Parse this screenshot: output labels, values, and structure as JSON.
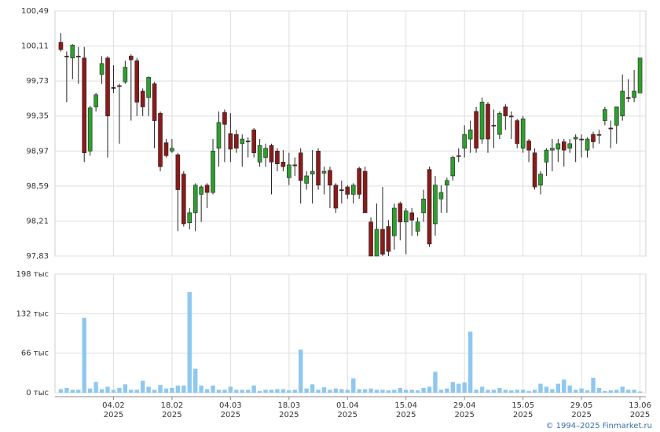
{
  "chart_data": [
    {
      "type": "candlestick",
      "ylim": [
        97.83,
        100.49
      ],
      "yticks": [
        {
          "value": 97.83,
          "label": "97,83"
        },
        {
          "value": 98.21,
          "label": "98,21"
        },
        {
          "value": 98.59,
          "label": "98,59"
        },
        {
          "value": 98.97,
          "label": "98,97"
        },
        {
          "value": 99.35,
          "label": "99,35"
        },
        {
          "value": 99.73,
          "label": "99,73"
        },
        {
          "value": 100.11,
          "label": "100,11"
        },
        {
          "value": 100.49,
          "label": "100,49"
        }
      ],
      "xlim": [
        -1,
        100
      ],
      "up_color": "#2ca02c",
      "down_color": "#8b1a1a",
      "grid": true,
      "ohlc": [
        [
          100.15,
          100.25,
          100.05,
          100.07
        ],
        [
          100.0,
          100.05,
          99.5,
          99.99
        ],
        [
          99.98,
          100.13,
          99.75,
          100.12
        ],
        [
          100.0,
          100.1,
          99.7,
          99.99
        ],
        [
          99.98,
          100.1,
          98.85,
          98.95
        ],
        [
          98.97,
          99.46,
          98.92,
          99.44
        ],
        [
          99.45,
          99.6,
          99.4,
          99.58
        ],
        [
          99.8,
          100.0,
          99.7,
          99.92
        ],
        [
          99.98,
          100.0,
          98.9,
          99.35
        ],
        [
          99.66,
          99.9,
          99.6,
          99.65
        ],
        [
          99.68,
          99.7,
          99.05,
          99.67
        ],
        [
          99.72,
          99.95,
          99.7,
          99.88
        ],
        [
          100.0,
          100.02,
          99.3,
          99.96
        ],
        [
          99.95,
          99.98,
          99.35,
          99.5
        ],
        [
          99.62,
          99.65,
          99.35,
          99.45
        ],
        [
          99.55,
          99.78,
          99.35,
          99.77
        ],
        [
          99.7,
          99.72,
          99.0,
          99.3
        ],
        [
          99.38,
          99.4,
          98.75,
          98.8
        ],
        [
          99.06,
          99.1,
          98.9,
          98.92
        ],
        [
          98.97,
          99.1,
          98.95,
          99.0
        ],
        [
          98.93,
          98.95,
          98.1,
          98.55
        ],
        [
          98.72,
          98.75,
          98.15,
          98.18
        ],
        [
          98.19,
          98.35,
          98.12,
          98.3
        ],
        [
          98.3,
          98.62,
          98.1,
          98.6
        ],
        [
          98.5,
          98.6,
          98.2,
          98.58
        ],
        [
          98.6,
          98.62,
          98.35,
          98.52
        ],
        [
          98.52,
          99.1,
          98.5,
          98.97
        ],
        [
          99.0,
          99.4,
          98.8,
          99.28
        ],
        [
          99.39,
          99.42,
          98.85,
          99.26
        ],
        [
          99.16,
          99.38,
          98.85,
          98.99
        ],
        [
          99.15,
          99.2,
          98.95,
          99.0
        ],
        [
          99.05,
          99.15,
          98.8,
          99.1
        ],
        [
          99.08,
          99.12,
          98.9,
          99.07
        ],
        [
          99.2,
          99.22,
          98.9,
          98.95
        ],
        [
          98.85,
          99.1,
          98.8,
          99.03
        ],
        [
          98.9,
          99.05,
          98.8,
          99.0
        ],
        [
          99.03,
          99.05,
          98.5,
          98.85
        ],
        [
          98.97,
          99.0,
          98.75,
          98.83
        ],
        [
          98.85,
          98.98,
          98.75,
          98.8
        ],
        [
          98.68,
          98.95,
          98.6,
          98.82
        ],
        [
          98.82,
          98.9,
          98.7,
          98.81
        ],
        [
          98.95,
          99.0,
          98.4,
          98.65
        ],
        [
          98.62,
          98.75,
          98.55,
          98.7
        ],
        [
          98.72,
          98.98,
          98.4,
          98.75
        ],
        [
          98.97,
          99.0,
          98.55,
          98.6
        ],
        [
          98.73,
          98.8,
          98.5,
          98.75
        ],
        [
          98.76,
          98.8,
          98.35,
          98.6
        ],
        [
          98.6,
          98.62,
          98.3,
          98.35
        ],
        [
          98.55,
          98.65,
          98.4,
          98.54
        ],
        [
          98.58,
          98.6,
          98.45,
          98.5
        ],
        [
          98.5,
          98.62,
          98.4,
          98.6
        ],
        [
          98.78,
          98.8,
          98.45,
          98.5
        ],
        [
          98.75,
          98.8,
          98.3,
          98.3
        ],
        [
          98.2,
          98.25,
          97.83,
          97.83
        ],
        [
          97.83,
          98.4,
          97.83,
          98.12
        ],
        [
          98.12,
          98.58,
          97.83,
          97.85
        ],
        [
          98.15,
          98.22,
          97.83,
          97.88
        ],
        [
          98.05,
          98.4,
          97.9,
          98.35
        ],
        [
          98.4,
          98.42,
          98.0,
          98.2
        ],
        [
          98.2,
          98.35,
          97.85,
          98.32
        ],
        [
          98.3,
          98.35,
          98.05,
          98.22
        ],
        [
          98.1,
          98.25,
          98.05,
          98.2
        ],
        [
          98.3,
          98.55,
          98.2,
          98.45
        ],
        [
          98.77,
          98.8,
          97.93,
          97.96
        ],
        [
          98.18,
          98.7,
          98.05,
          98.6
        ],
        [
          98.45,
          98.6,
          98.3,
          98.52
        ],
        [
          98.6,
          98.68,
          98.3,
          98.65
        ],
        [
          98.7,
          98.92,
          98.65,
          98.9
        ],
        [
          98.92,
          99.0,
          98.85,
          98.91
        ],
        [
          99.0,
          99.25,
          98.9,
          99.15
        ],
        [
          99.1,
          99.3,
          98.95,
          99.2
        ],
        [
          99.4,
          99.45,
          98.95,
          99.0
        ],
        [
          99.1,
          99.55,
          99.05,
          99.5
        ],
        [
          99.48,
          99.5,
          98.95,
          99.1
        ],
        [
          99.25,
          99.42,
          99.0,
          99.24
        ],
        [
          99.15,
          99.4,
          99.1,
          99.38
        ],
        [
          99.45,
          99.48,
          99.2,
          99.35
        ],
        [
          99.35,
          99.4,
          99.1,
          99.34
        ],
        [
          99.3,
          99.32,
          99.0,
          99.05
        ],
        [
          99.0,
          99.35,
          98.95,
          99.32
        ],
        [
          99.08,
          99.1,
          98.85,
          98.98
        ],
        [
          98.95,
          99.0,
          98.55,
          98.58
        ],
        [
          98.6,
          98.75,
          98.5,
          98.72
        ],
        [
          98.85,
          99.0,
          98.7,
          98.98
        ],
        [
          98.98,
          99.1,
          98.75,
          99.0
        ],
        [
          98.99,
          99.1,
          98.85,
          99.05
        ],
        [
          99.07,
          99.1,
          98.8,
          98.98
        ],
        [
          99.0,
          99.1,
          98.95,
          99.05
        ],
        [
          99.1,
          99.15,
          98.85,
          99.12
        ],
        [
          99.1,
          99.15,
          98.9,
          99.09
        ],
        [
          98.98,
          99.12,
          98.9,
          99.1
        ],
        [
          99.15,
          99.18,
          99.0,
          99.07
        ],
        [
          99.15,
          99.2,
          99.05,
          99.14
        ],
        [
          99.3,
          99.45,
          99.25,
          99.42
        ],
        [
          99.22,
          99.3,
          99.0,
          99.21
        ],
        [
          99.25,
          99.45,
          99.05,
          99.45
        ],
        [
          99.35,
          99.8,
          99.3,
          99.62
        ],
        [
          99.55,
          99.75,
          99.5,
          99.54
        ],
        [
          99.55,
          99.85,
          99.5,
          99.62
        ],
        [
          99.6,
          99.98,
          99.6,
          99.98
        ]
      ]
    },
    {
      "type": "bar",
      "ylim": [
        0,
        198
      ],
      "yticks": [
        {
          "value": 0,
          "label": "0 тыс"
        },
        {
          "value": 66,
          "label": "66 тыс"
        },
        {
          "value": 132,
          "label": "132 тыс"
        },
        {
          "value": 198,
          "label": "198 тыс"
        }
      ],
      "xlim": [
        -1,
        100
      ],
      "xticks": [
        {
          "value": 9,
          "label": "04.02",
          "year": "2025"
        },
        {
          "value": 19,
          "label": "18.02",
          "year": "2025"
        },
        {
          "value": 29,
          "label": "04.03",
          "year": "2025"
        },
        {
          "value": 39,
          "label": "18.03",
          "year": "2025"
        },
        {
          "value": 49,
          "label": "01.04",
          "year": "2025"
        },
        {
          "value": 59,
          "label": "15.04",
          "year": "2025"
        },
        {
          "value": 69,
          "label": "29.04",
          "year": "2025"
        },
        {
          "value": 79,
          "label": "15.05",
          "year": "2025"
        },
        {
          "value": 89,
          "label": "29.05",
          "year": "2025"
        },
        {
          "value": 99,
          "label": "13.06",
          "year": "2025"
        }
      ],
      "color": "#8ec8f0",
      "grid": true,
      "values": [
        6,
        8,
        5,
        5,
        125,
        7,
        18,
        6,
        10,
        5,
        8,
        14,
        5,
        5,
        20,
        10,
        5,
        13,
        7,
        8,
        12,
        12,
        168,
        40,
        12,
        6,
        12,
        5,
        5,
        10,
        5,
        5,
        5,
        12,
        3,
        5,
        5,
        6,
        6,
        4,
        5,
        72,
        7,
        14,
        5,
        9,
        5,
        7,
        6,
        5,
        24,
        6,
        6,
        7,
        5,
        5,
        4,
        5,
        8,
        5,
        5,
        4,
        8,
        10,
        35,
        5,
        7,
        18,
        15,
        17,
        102,
        5,
        10,
        5,
        5,
        8,
        5,
        4,
        5,
        5,
        3,
        5,
        15,
        10,
        6,
        15,
        22,
        12,
        5,
        7,
        4,
        25,
        8,
        3,
        4,
        5,
        10,
        5,
        5,
        2
      ]
    }
  ],
  "footer": "© 1994–2025 Finmarket.ru"
}
